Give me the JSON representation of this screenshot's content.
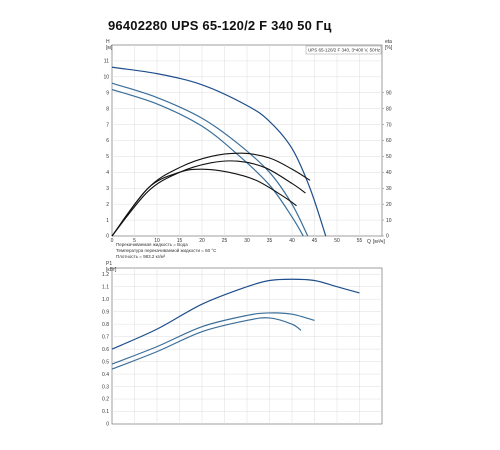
{
  "title": "96402280 UPS 65-120/2 F 340 50 Гц",
  "chart_data": [
    {
      "type": "line",
      "id": "head",
      "ylabel": "H",
      "yunit": "[м]",
      "y2label": "eta",
      "y2unit": "[%]",
      "xlabel": "Q",
      "xunit": "[м³/ч]",
      "xlim": [
        0,
        60
      ],
      "ylim": [
        0,
        12
      ],
      "y2lim": [
        0,
        120
      ],
      "xticks": [
        "0",
        "5",
        "10",
        "15",
        "20",
        "25",
        "30",
        "35",
        "40",
        "45",
        "50",
        "55"
      ],
      "yticks": [
        "0",
        "1",
        "2",
        "3",
        "4",
        "5",
        "6",
        "7",
        "8",
        "9",
        "10",
        "11"
      ],
      "y2ticks": [
        "0",
        "10",
        "20",
        "30",
        "40",
        "50",
        "60",
        "70",
        "80",
        "90"
      ],
      "legend": "UPS 65-120/2 F 340, 3*400 V, 50Hz",
      "grid": true,
      "series": [
        {
          "kind": "head",
          "color": "#1f4e8c",
          "x": [
            0,
            10,
            20,
            30,
            35,
            40,
            44,
            47.5
          ],
          "y": [
            10.6,
            10.2,
            9.5,
            8.2,
            7.2,
            5.5,
            3.0,
            0
          ]
        },
        {
          "kind": "head",
          "color": "#3b6f9a",
          "x": [
            0,
            10,
            20,
            28,
            35,
            40,
            43.5
          ],
          "y": [
            9.6,
            8.7,
            7.4,
            5.8,
            4.0,
            2.0,
            0
          ]
        },
        {
          "kind": "head",
          "color": "#3b6f9a",
          "x": [
            0,
            10,
            20,
            28,
            35,
            40,
            42.5
          ],
          "y": [
            9.2,
            8.3,
            6.9,
            5.1,
            3.2,
            1.2,
            0
          ]
        },
        {
          "kind": "efficiency",
          "color": "#111111",
          "x": [
            0,
            8,
            15,
            22,
            29,
            35,
            40,
            44
          ],
          "y": [
            0,
            30,
            43,
            50,
            52,
            49,
            42,
            35
          ]
        },
        {
          "kind": "efficiency",
          "color": "#111111",
          "x": [
            0,
            8,
            15,
            20,
            26,
            32,
            38,
            41
          ],
          "y": [
            0,
            30,
            40,
            42,
            40,
            35,
            25,
            19
          ]
        },
        {
          "kind": "efficiency",
          "color": "#111111",
          "x": [
            0,
            8,
            15,
            22,
            28,
            34,
            40,
            43
          ],
          "y": [
            0,
            28,
            40,
            46,
            47,
            43,
            33,
            27
          ]
        }
      ],
      "notes": [
        "Перекачиваемая жидкость = Вода",
        "Температура перекачиваемой жидкости = 60 °C",
        "Плотность = 983.2 кг/м³"
      ]
    },
    {
      "type": "line",
      "id": "power",
      "ylabel": "P1",
      "yunit": "[кВт]",
      "xlim": [
        0,
        60
      ],
      "ylim": [
        0,
        1.25
      ],
      "yticks": [
        "0",
        "0.1",
        "0.2",
        "0.3",
        "0.4",
        "0.5",
        "0.6",
        "0.7",
        "0.8",
        "0.9",
        "1.0",
        "1.1",
        "1.2"
      ],
      "grid": true,
      "series": [
        {
          "color": "#1f4e8c",
          "x": [
            0,
            10,
            20,
            30,
            35,
            40,
            45,
            50,
            55
          ],
          "y": [
            0.6,
            0.76,
            0.96,
            1.1,
            1.15,
            1.16,
            1.15,
            1.1,
            1.05
          ]
        },
        {
          "color": "#3b6f9a",
          "x": [
            0,
            10,
            20,
            30,
            35,
            40,
            45
          ],
          "y": [
            0.48,
            0.62,
            0.78,
            0.87,
            0.89,
            0.88,
            0.83
          ]
        },
        {
          "color": "#3b6f9a",
          "x": [
            0,
            10,
            20,
            30,
            35,
            40,
            42
          ],
          "y": [
            0.44,
            0.58,
            0.74,
            0.83,
            0.85,
            0.8,
            0.75
          ]
        }
      ]
    }
  ]
}
